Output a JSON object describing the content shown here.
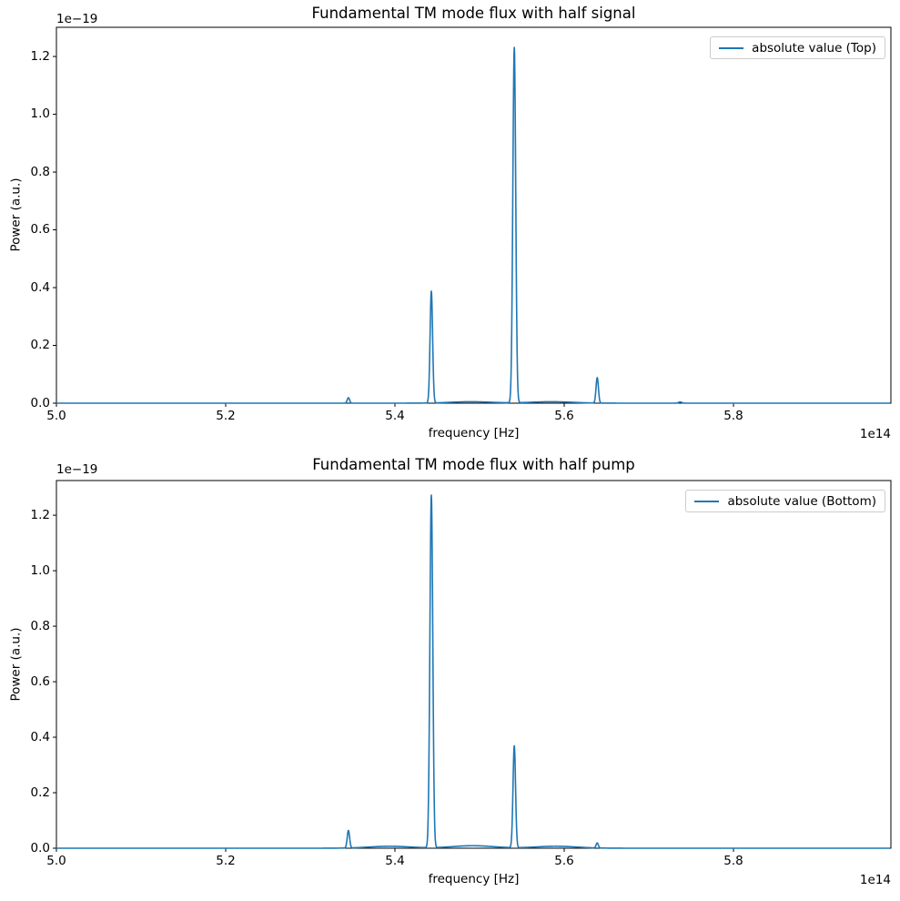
{
  "figure": {
    "background": "#ffffff",
    "axis_color": "#000000"
  },
  "chart_data": [
    {
      "type": "line",
      "title": "Fundamental TM mode flux with half signal",
      "xlabel": "frequency [Hz]",
      "ylabel": "Power (a.u.)",
      "x_scale_label": "1e14",
      "y_scale_label": "1e−19",
      "x_unit": "1e14 Hz",
      "y_unit": "1e-19 a.u.",
      "legend": {
        "position": "upper right",
        "entries": [
          "absolute value (Top)"
        ]
      },
      "line_color": "#1f77b4",
      "grid": false,
      "xlim": [
        5.0,
        5.986
      ],
      "ylim": [
        0.0,
        1.301
      ],
      "xticks": [
        "5.0",
        "5.2",
        "5.4",
        "5.6",
        "5.8"
      ],
      "yticks": [
        "0.0",
        "0.2",
        "0.4",
        "0.6",
        "0.8",
        "1.0",
        "1.2"
      ],
      "peaks": [
        {
          "x": 5.345,
          "y": 0.019,
          "w": 0.0014
        },
        {
          "x": 5.443,
          "y": 0.387,
          "w": 0.0015
        },
        {
          "x": 5.541,
          "y": 1.23,
          "w": 0.0017
        },
        {
          "x": 5.639,
          "y": 0.088,
          "w": 0.0014
        },
        {
          "x": 5.737,
          "y": 0.004,
          "w": 0.002
        }
      ],
      "baseline_bumps": [
        {
          "x": 5.49,
          "y": 0.005,
          "w": 0.025
        },
        {
          "x": 5.585,
          "y": 0.005,
          "w": 0.025
        }
      ]
    },
    {
      "type": "line",
      "title": "Fundamental TM mode flux with half pump",
      "xlabel": "frequency [Hz]",
      "ylabel": "Power (a.u.)",
      "x_scale_label": "1e14",
      "y_scale_label": "1e−19",
      "x_unit": "1e14 Hz",
      "y_unit": "1e-19 a.u.",
      "legend": {
        "position": "upper right",
        "entries": [
          "absolute value (Bottom)"
        ]
      },
      "line_color": "#1f77b4",
      "grid": false,
      "xlim": [
        5.0,
        5.986
      ],
      "ylim": [
        0.0,
        1.325
      ],
      "xticks": [
        "5.0",
        "5.2",
        "5.4",
        "5.6",
        "5.8"
      ],
      "yticks": [
        "0.0",
        "0.2",
        "0.4",
        "0.6",
        "0.8",
        "1.0",
        "1.2"
      ],
      "peaks": [
        {
          "x": 5.345,
          "y": 0.063,
          "w": 0.0014
        },
        {
          "x": 5.443,
          "y": 1.27,
          "w": 0.0017
        },
        {
          "x": 5.541,
          "y": 0.367,
          "w": 0.0015
        },
        {
          "x": 5.639,
          "y": 0.018,
          "w": 0.0013
        }
      ],
      "baseline_bumps": [
        {
          "x": 5.394,
          "y": 0.007,
          "w": 0.025
        },
        {
          "x": 5.492,
          "y": 0.009,
          "w": 0.025
        },
        {
          "x": 5.59,
          "y": 0.007,
          "w": 0.025
        }
      ]
    }
  ]
}
